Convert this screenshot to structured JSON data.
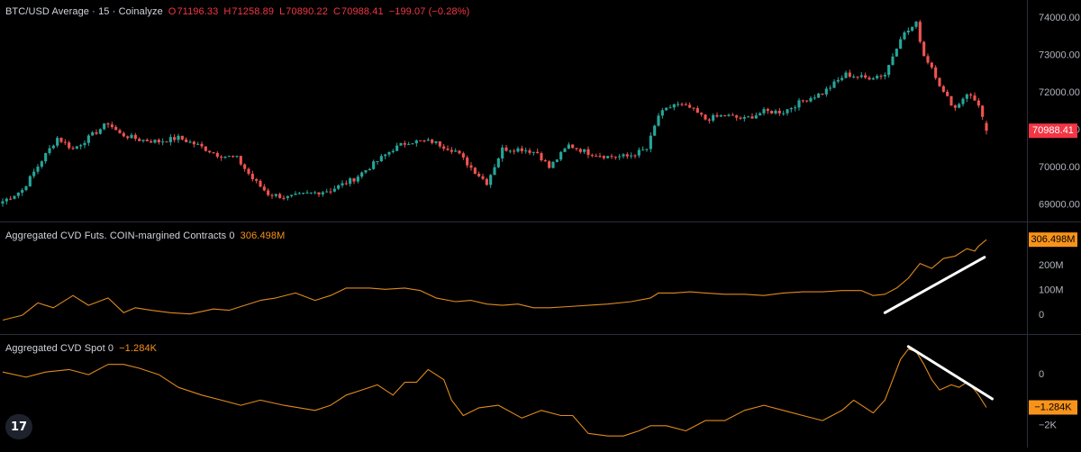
{
  "header": {
    "symbol_line": "BTC/USD Average · 15 · Coinalyze",
    "open_key": "O",
    "open": "71196.33",
    "high_key": "H",
    "high": "71258.89",
    "low_key": "L",
    "low": "70890.22",
    "close_key": "C",
    "close": "70988.41",
    "change": "−199.07 (−0.28%)"
  },
  "indicators": {
    "futs_name": "Aggregated CVD Futs. COIN-margined Contracts 0",
    "futs_value": "306.498M",
    "spot_name": "Aggregated CVD Spot 0",
    "spot_value": "−1.284K"
  },
  "logo": {
    "text": "17"
  },
  "colors": {
    "up": "#26a69a",
    "down": "#ef5350",
    "cvd_line": "#e08a1e",
    "last_price_badge": "#f23645",
    "cvd_badge": "#f7931a",
    "axis_text": "#b2b5be",
    "pane_separator": "#2a2e39",
    "trendline": "#ffffff"
  },
  "chart_data": [
    {
      "type": "candlestick",
      "title": "BTC/USD Average · 15 · Coinalyze",
      "ylim": [
        68800,
        74200
      ],
      "y_ticks": [
        69000,
        70000,
        71000,
        72000,
        73000,
        74000
      ],
      "y_tick_labels": [
        "69000.00",
        "70000.00",
        "71000.00",
        "72000.00",
        "73000.00",
        "74000.00"
      ],
      "last_value_label": "70988.41",
      "last_close": 70988.41,
      "close_path_anchors": [
        [
          0,
          69100
        ],
        [
          5,
          69400
        ],
        [
          10,
          70200
        ],
        [
          14,
          70800
        ],
        [
          18,
          70500
        ],
        [
          22,
          70800
        ],
        [
          27,
          71200
        ],
        [
          30,
          70900
        ],
        [
          35,
          70750
        ],
        [
          40,
          70700
        ],
        [
          45,
          70800
        ],
        [
          50,
          70600
        ],
        [
          55,
          70350
        ],
        [
          60,
          70250
        ],
        [
          64,
          69700
        ],
        [
          68,
          69300
        ],
        [
          73,
          69200
        ],
        [
          78,
          69300
        ],
        [
          84,
          69400
        ],
        [
          90,
          69700
        ],
        [
          95,
          70100
        ],
        [
          100,
          70500
        ],
        [
          104,
          70700
        ],
        [
          110,
          70700
        ],
        [
          116,
          70450
        ],
        [
          120,
          70000
        ],
        [
          124,
          69600
        ],
        [
          128,
          70500
        ],
        [
          133,
          70500
        ],
        [
          137,
          70400
        ],
        [
          140,
          70000
        ],
        [
          145,
          70600
        ],
        [
          150,
          70400
        ],
        [
          155,
          70300
        ],
        [
          160,
          70300
        ],
        [
          165,
          70500
        ],
        [
          168,
          71400
        ],
        [
          172,
          71700
        ],
        [
          176,
          71600
        ],
        [
          180,
          71300
        ],
        [
          185,
          71400
        ],
        [
          190,
          71300
        ],
        [
          195,
          71500
        ],
        [
          200,
          71500
        ],
        [
          205,
          71800
        ],
        [
          210,
          72000
        ],
        [
          216,
          72500
        ],
        [
          221,
          72400
        ],
        [
          226,
          72500
        ],
        [
          230,
          73500
        ],
        [
          234,
          73850
        ],
        [
          236,
          73000
        ],
        [
          238,
          72700
        ],
        [
          241,
          72000
        ],
        [
          244,
          71600
        ],
        [
          247,
          72000
        ],
        [
          250,
          71700
        ],
        [
          252,
          70988.41
        ]
      ],
      "candle_count": 253
    },
    {
      "type": "line",
      "title": "Aggregated CVD Futs. COIN-margined Contracts 0",
      "units": "M",
      "ylim": [
        -40,
        340
      ],
      "y_ticks": [
        0,
        100,
        200
      ],
      "y_tick_labels": [
        "0",
        "100M",
        "200M"
      ],
      "last_value_label": "306.498M",
      "points": [
        [
          0,
          -20
        ],
        [
          5,
          0
        ],
        [
          9,
          50
        ],
        [
          13,
          30
        ],
        [
          18,
          80
        ],
        [
          22,
          40
        ],
        [
          27,
          70
        ],
        [
          31,
          10
        ],
        [
          34,
          30
        ],
        [
          38,
          20
        ],
        [
          43,
          10
        ],
        [
          48,
          5
        ],
        [
          54,
          25
        ],
        [
          58,
          20
        ],
        [
          62,
          40
        ],
        [
          66,
          60
        ],
        [
          70,
          70
        ],
        [
          75,
          90
        ],
        [
          80,
          60
        ],
        [
          84,
          80
        ],
        [
          88,
          110
        ],
        [
          94,
          110
        ],
        [
          98,
          105
        ],
        [
          103,
          110
        ],
        [
          107,
          100
        ],
        [
          111,
          70
        ],
        [
          116,
          55
        ],
        [
          120,
          60
        ],
        [
          124,
          45
        ],
        [
          128,
          40
        ],
        [
          132,
          45
        ],
        [
          136,
          30
        ],
        [
          140,
          30
        ],
        [
          145,
          35
        ],
        [
          150,
          40
        ],
        [
          155,
          45
        ],
        [
          161,
          55
        ],
        [
          166,
          70
        ],
        [
          168,
          90
        ],
        [
          172,
          90
        ],
        [
          176,
          95
        ],
        [
          180,
          90
        ],
        [
          185,
          85
        ],
        [
          190,
          85
        ],
        [
          195,
          80
        ],
        [
          200,
          90
        ],
        [
          205,
          95
        ],
        [
          210,
          95
        ],
        [
          215,
          100
        ],
        [
          220,
          100
        ],
        [
          223,
          80
        ],
        [
          226,
          85
        ],
        [
          229,
          110
        ],
        [
          232,
          150
        ],
        [
          235,
          210
        ],
        [
          238,
          190
        ],
        [
          241,
          230
        ],
        [
          244,
          240
        ],
        [
          247,
          270
        ],
        [
          249,
          260
        ],
        [
          250,
          280
        ],
        [
          252,
          306.498
        ]
      ]
    },
    {
      "type": "line",
      "title": "Aggregated CVD Spot 0",
      "units": "K",
      "ylim": [
        -2.5,
        1.2
      ],
      "y_ticks": [
        0,
        -2
      ],
      "y_tick_labels": [
        "0",
        "−2K"
      ],
      "last_value_label": "−1.284K",
      "points": [
        [
          0,
          0.1
        ],
        [
          6,
          -0.1
        ],
        [
          11,
          0.1
        ],
        [
          17,
          0.2
        ],
        [
          22,
          0.0
        ],
        [
          27,
          0.4
        ],
        [
          31,
          0.4
        ],
        [
          35,
          0.25
        ],
        [
          40,
          0.0
        ],
        [
          45,
          -0.5
        ],
        [
          51,
          -0.8
        ],
        [
          56,
          -1.0
        ],
        [
          61,
          -1.2
        ],
        [
          66,
          -1.0
        ],
        [
          72,
          -1.2
        ],
        [
          80,
          -1.4
        ],
        [
          84,
          -1.2
        ],
        [
          88,
          -0.8
        ],
        [
          92,
          -0.6
        ],
        [
          96,
          -0.4
        ],
        [
          100,
          -0.8
        ],
        [
          103,
          -0.3
        ],
        [
          106,
          -0.3
        ],
        [
          109,
          0.2
        ],
        [
          111,
          0.0
        ],
        [
          113,
          -0.2
        ],
        [
          115,
          -1.0
        ],
        [
          118,
          -1.6
        ],
        [
          122,
          -1.3
        ],
        [
          127,
          -1.2
        ],
        [
          133,
          -1.7
        ],
        [
          138,
          -1.4
        ],
        [
          143,
          -1.6
        ],
        [
          146,
          -1.6
        ],
        [
          150,
          -2.3
        ],
        [
          155,
          -2.4
        ],
        [
          159,
          -2.4
        ],
        [
          163,
          -2.2
        ],
        [
          166,
          -2.0
        ],
        [
          170,
          -2.0
        ],
        [
          175,
          -2.2
        ],
        [
          180,
          -1.8
        ],
        [
          185,
          -1.8
        ],
        [
          190,
          -1.4
        ],
        [
          195,
          -1.2
        ],
        [
          200,
          -1.4
        ],
        [
          205,
          -1.6
        ],
        [
          210,
          -1.8
        ],
        [
          215,
          -1.4
        ],
        [
          218,
          -1.0
        ],
        [
          220,
          -1.2
        ],
        [
          223,
          -1.5
        ],
        [
          226,
          -1.0
        ],
        [
          228,
          -0.2
        ],
        [
          230,
          0.6
        ],
        [
          232,
          1.0
        ],
        [
          234,
          0.9
        ],
        [
          236,
          0.4
        ],
        [
          238,
          -0.2
        ],
        [
          240,
          -0.6
        ],
        [
          243,
          -0.4
        ],
        [
          245,
          -0.5
        ],
        [
          247,
          -0.3
        ],
        [
          249,
          -0.6
        ],
        [
          250,
          -0.8
        ],
        [
          252,
          -1.284
        ]
      ]
    }
  ]
}
